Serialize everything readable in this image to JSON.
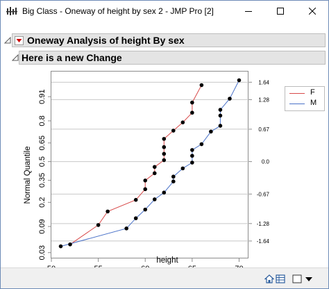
{
  "window": {
    "title": "Big Class - Oneway of height by sex 2 - JMP Pro [2]"
  },
  "report": {
    "outline_title": "Oneway Analysis of height By sex",
    "sub_outline_title": "Here is a new Change"
  },
  "colors": {
    "series_F": "#d84a4a",
    "series_M": "#4a72c8",
    "outline_bg": "#e4e4e4",
    "red_triangle": "#cc0000"
  },
  "chart_data": {
    "type": "line",
    "xlabel": "height",
    "ylabel": "Normal Quantile",
    "xlim": [
      50,
      71
    ],
    "x_ticks": [
      "50",
      "55",
      "60",
      "65",
      "70"
    ],
    "y_ticks": [
      "0.03",
      "0.09",
      "0.2",
      "0.35",
      "0.5",
      "0.65",
      "0.8",
      "0.91"
    ],
    "y_tick_values": [
      0.03,
      0.09,
      0.2,
      0.35,
      0.5,
      0.65,
      0.8,
      0.91
    ],
    "z_ticks": [
      "1.64",
      "1.28",
      "0.67",
      "0.0",
      "-0.67",
      "-1.28",
      "-1.64"
    ],
    "z_tick_values": [
      1.64,
      1.28,
      0.67,
      0.0,
      -0.67,
      -1.28,
      -1.64
    ],
    "grid": true,
    "legend": "top-right, outside plot",
    "series": [
      {
        "name": "F",
        "points": [
          [
            52,
            -1.71
          ],
          [
            55,
            -1.31
          ],
          [
            56,
            -1.03
          ],
          [
            59,
            -0.79
          ],
          [
            60,
            -0.57
          ],
          [
            60,
            -0.39
          ],
          [
            61,
            -0.24
          ],
          [
            61,
            -0.11
          ],
          [
            62,
            0.03
          ],
          [
            62,
            0.16
          ],
          [
            62,
            0.3
          ],
          [
            62,
            0.47
          ],
          [
            63,
            0.64
          ],
          [
            64,
            0.81
          ],
          [
            65,
            1.01
          ],
          [
            65,
            1.22
          ],
          [
            66,
            1.58
          ]
        ]
      },
      {
        "name": "M",
        "points": [
          [
            51,
            -1.75
          ],
          [
            58,
            -1.38
          ],
          [
            59,
            -1.17
          ],
          [
            60,
            -0.99
          ],
          [
            61,
            -0.78
          ],
          [
            62,
            -0.64
          ],
          [
            63,
            -0.41
          ],
          [
            63,
            -0.31
          ],
          [
            64,
            -0.14
          ],
          [
            65,
            -0.02
          ],
          [
            65,
            0.12
          ],
          [
            65,
            0.24
          ],
          [
            66,
            0.36
          ],
          [
            67,
            0.62
          ],
          [
            68,
            0.74
          ],
          [
            68,
            0.95
          ],
          [
            68,
            1.07
          ],
          [
            69,
            1.3
          ],
          [
            70,
            1.68
          ]
        ]
      }
    ]
  }
}
